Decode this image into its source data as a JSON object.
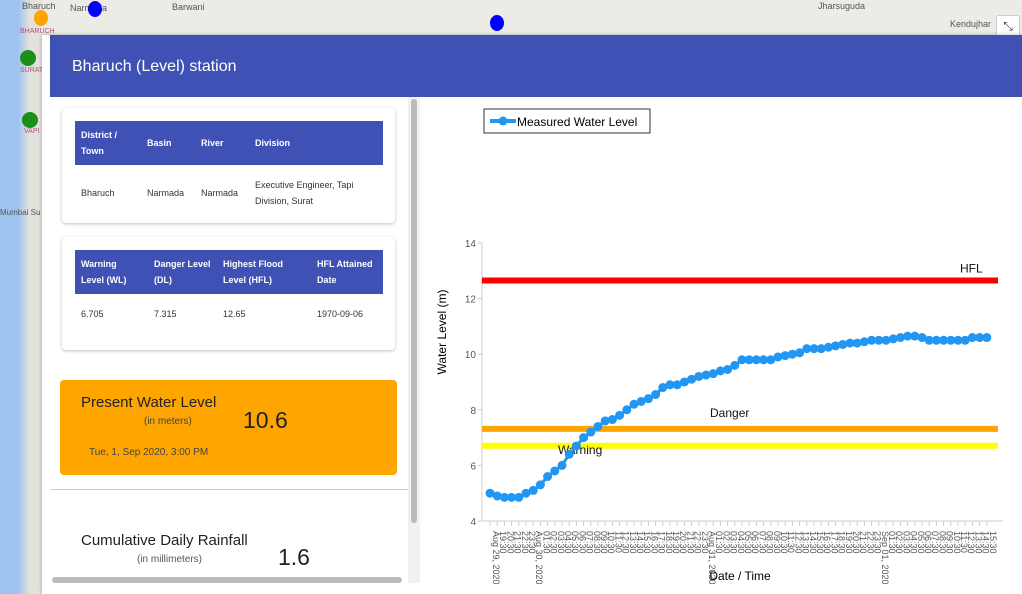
{
  "map": {
    "labels": [
      "Bharuch",
      "Narmada",
      "Barwani",
      "Jharsuguda",
      "Kendujhar",
      "BHARUCH",
      "SURAT",
      "VAPI",
      "Mumbai Su"
    ]
  },
  "header": {
    "title": "Bharuch (Level) station"
  },
  "info_table": {
    "headers": [
      "District / Town",
      "Basin",
      "River",
      "Division"
    ],
    "row": [
      "Bharuch",
      "Narmada",
      "Narmada",
      "Executive Engineer, Tapi Division, Surat"
    ]
  },
  "levels_table": {
    "headers": [
      "Warning Level (WL)",
      "Danger Level (DL)",
      "Highest Flood Level (HFL)",
      "HFL Attained Date"
    ],
    "row": [
      "6.705",
      "7.315",
      "12.65",
      "1970-09-06"
    ]
  },
  "present": {
    "title": "Present Water Level",
    "unit": "(in meters)",
    "value": "10.6",
    "timestamp": "Tue, 1, Sep 2020, 3:00 PM"
  },
  "rainfall": {
    "title": "Cumulative Daily Rainfall",
    "unit": "(in millimeters)",
    "value": "1.6"
  },
  "controls": {
    "zoom_in": "+",
    "zoom_out": "−",
    "compass": "▲"
  },
  "chart_data": {
    "type": "line",
    "title": "",
    "xlabel": "Date / Time",
    "ylabel": "Water Level (m)",
    "ylim": [
      4,
      14
    ],
    "yticks": [
      4,
      6,
      8,
      10,
      12,
      14
    ],
    "legend": {
      "label": "Measured Water Level",
      "position": "top-left"
    },
    "series_color": "#2196f3",
    "thresholds": [
      {
        "name": "HFL",
        "value": 12.65,
        "color": "#ff0000"
      },
      {
        "name": "Danger",
        "value": 7.315,
        "color": "#ffa500"
      },
      {
        "name": "Warning",
        "value": 6.705,
        "color": "#ffff00"
      }
    ],
    "x": [
      "Aug 29, 2020",
      "19:30",
      "20:30",
      "21:30",
      "22:30",
      "23:30",
      "Aug 30, 2020",
      "01:30",
      "02:30",
      "03:30",
      "04:30",
      "05:30",
      "06:30",
      "07:30",
      "08:30",
      "09:30",
      "10:30",
      "11:30",
      "12:30",
      "13:30",
      "14:30",
      "15:30",
      "16:30",
      "17:30",
      "18:30",
      "19:30",
      "20:30",
      "21:30",
      "22:30",
      "23:30",
      "Aug 31, 2020",
      "01:30",
      "02:30",
      "03:30",
      "04:30",
      "05:30",
      "06:30",
      "07:30",
      "08:30",
      "09:30",
      "10:30",
      "11:30",
      "12:30",
      "13:30",
      "14:30",
      "15:30",
      "16:30",
      "17:30",
      "18:30",
      "19:30",
      "20:30",
      "21:30",
      "22:30",
      "23:30",
      "Sep 01, 2020",
      "01:30",
      "02:30",
      "03:30",
      "04:30",
      "05:30",
      "06:30",
      "07:30",
      "08:30",
      "09:30",
      "10:30",
      "11:30",
      "12:30",
      "13:30",
      "14:30",
      "15:30"
    ],
    "values": [
      5.0,
      4.9,
      4.85,
      4.85,
      4.85,
      5.0,
      5.1,
      5.3,
      5.6,
      5.8,
      6.0,
      6.4,
      6.7,
      7.0,
      7.2,
      7.4,
      7.6,
      7.65,
      7.8,
      8.0,
      8.2,
      8.3,
      8.4,
      8.55,
      8.8,
      8.9,
      8.9,
      9.0,
      9.1,
      9.2,
      9.25,
      9.3,
      9.4,
      9.45,
      9.6,
      9.8,
      9.8,
      9.8,
      9.8,
      9.8,
      9.9,
      9.95,
      10.0,
      10.05,
      10.2,
      10.2,
      10.2,
      10.25,
      10.3,
      10.35,
      10.4,
      10.4,
      10.45,
      10.5,
      10.5,
      10.5,
      10.55,
      10.6,
      10.65,
      10.65,
      10.6,
      10.5,
      10.5,
      10.5,
      10.5,
      10.5,
      10.5,
      10.6,
      10.6,
      10.6
    ]
  }
}
